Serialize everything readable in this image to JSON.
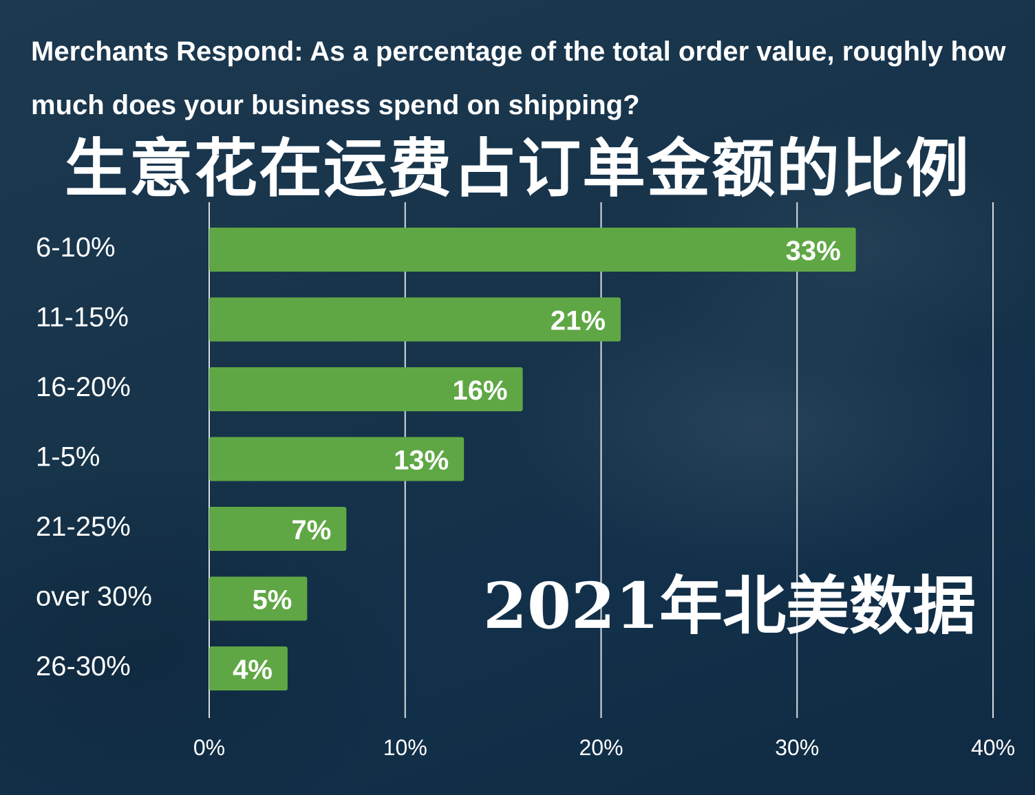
{
  "title_en": "Merchants Respond: As a percentage of the total order value, roughly how much does your business spend on shipping?",
  "title_zh": "生意花在运费占订单金额的比例",
  "overlay_text": "2021年北美数据",
  "colors": {
    "bar": "#5fa744",
    "gridline": "#d9dde0",
    "text": "#ffffff",
    "background": "#16334a"
  },
  "chart_data": {
    "type": "bar",
    "orientation": "horizontal",
    "categories": [
      "6-10%",
      "11-15%",
      "16-20%",
      "1-5%",
      "21-25%",
      "over 30%",
      "26-30%"
    ],
    "values": [
      33,
      21,
      16,
      13,
      7,
      5,
      4
    ],
    "data_labels": [
      "33%",
      "21%",
      "16%",
      "13%",
      "7%",
      "5%",
      "4%"
    ],
    "title": "Merchants Respond: As a percentage of the total order value, roughly how much does your business spend on shipping?",
    "xlim": [
      0,
      40
    ],
    "x_ticks": [
      0,
      10,
      20,
      30,
      40
    ],
    "x_tick_labels": [
      "0%",
      "10%",
      "20%",
      "30%",
      "40%"
    ],
    "xlabel": "",
    "ylabel": "",
    "grid": true,
    "legend": "none"
  }
}
